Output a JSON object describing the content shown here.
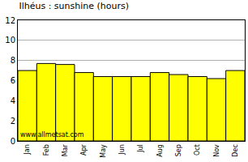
{
  "chart_data": {
    "type": "bar",
    "title": "Ilhéus : sunshine (hours)",
    "categories": [
      "Jan",
      "Feb",
      "Mar",
      "Apr",
      "May",
      "Jun",
      "Jul",
      "Aug",
      "Sep",
      "Oct",
      "Nov",
      "Dec"
    ],
    "values": [
      7.0,
      7.7,
      7.6,
      6.8,
      6.4,
      6.4,
      6.4,
      6.8,
      6.6,
      6.4,
      6.2,
      7.0
    ],
    "color": "#ffff00",
    "ylim": [
      0,
      12
    ],
    "yticks": [
      0,
      2,
      4,
      6,
      8,
      10,
      12
    ],
    "grid": true,
    "annotations": [
      "www.allmetsat.com"
    ]
  }
}
